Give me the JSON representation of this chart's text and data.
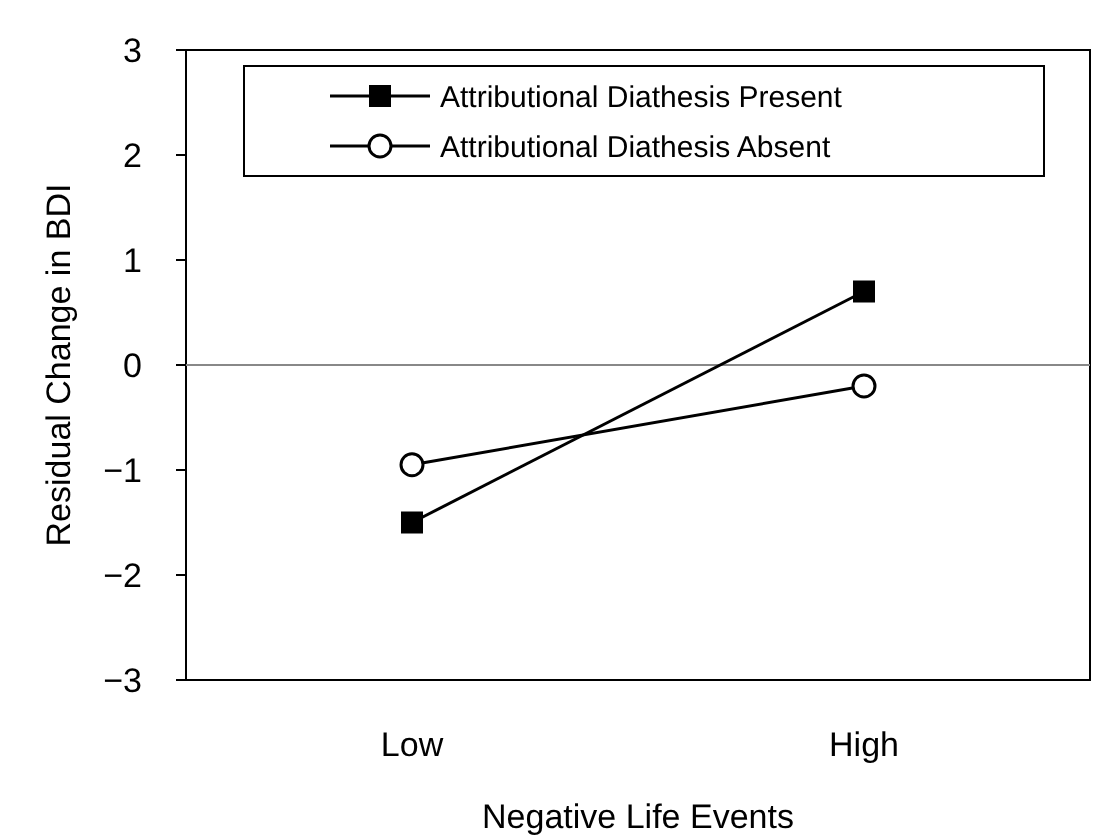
{
  "chart_data": {
    "type": "line",
    "xlabel": "Negative Life Events",
    "ylabel": "Residual Change in BDI",
    "categories": [
      "Low",
      "High"
    ],
    "series": [
      {
        "name": "Attributional Diathesis Present",
        "color": "#000000",
        "marker": "square",
        "values": [
          -1.5,
          0.7
        ]
      },
      {
        "name": "Attributional Diathesis Absent",
        "color": "#000000",
        "marker": "circle",
        "values": [
          -0.95,
          -0.2
        ]
      }
    ],
    "ylim": [
      -3,
      3
    ],
    "yticks": [
      -3,
      -2,
      -1,
      0,
      1,
      2,
      3
    ],
    "ref_lines": [
      {
        "axis": "y",
        "value": 0,
        "color": "#888888"
      }
    ],
    "legend": "top",
    "grid": false,
    "line_style": "solid"
  }
}
